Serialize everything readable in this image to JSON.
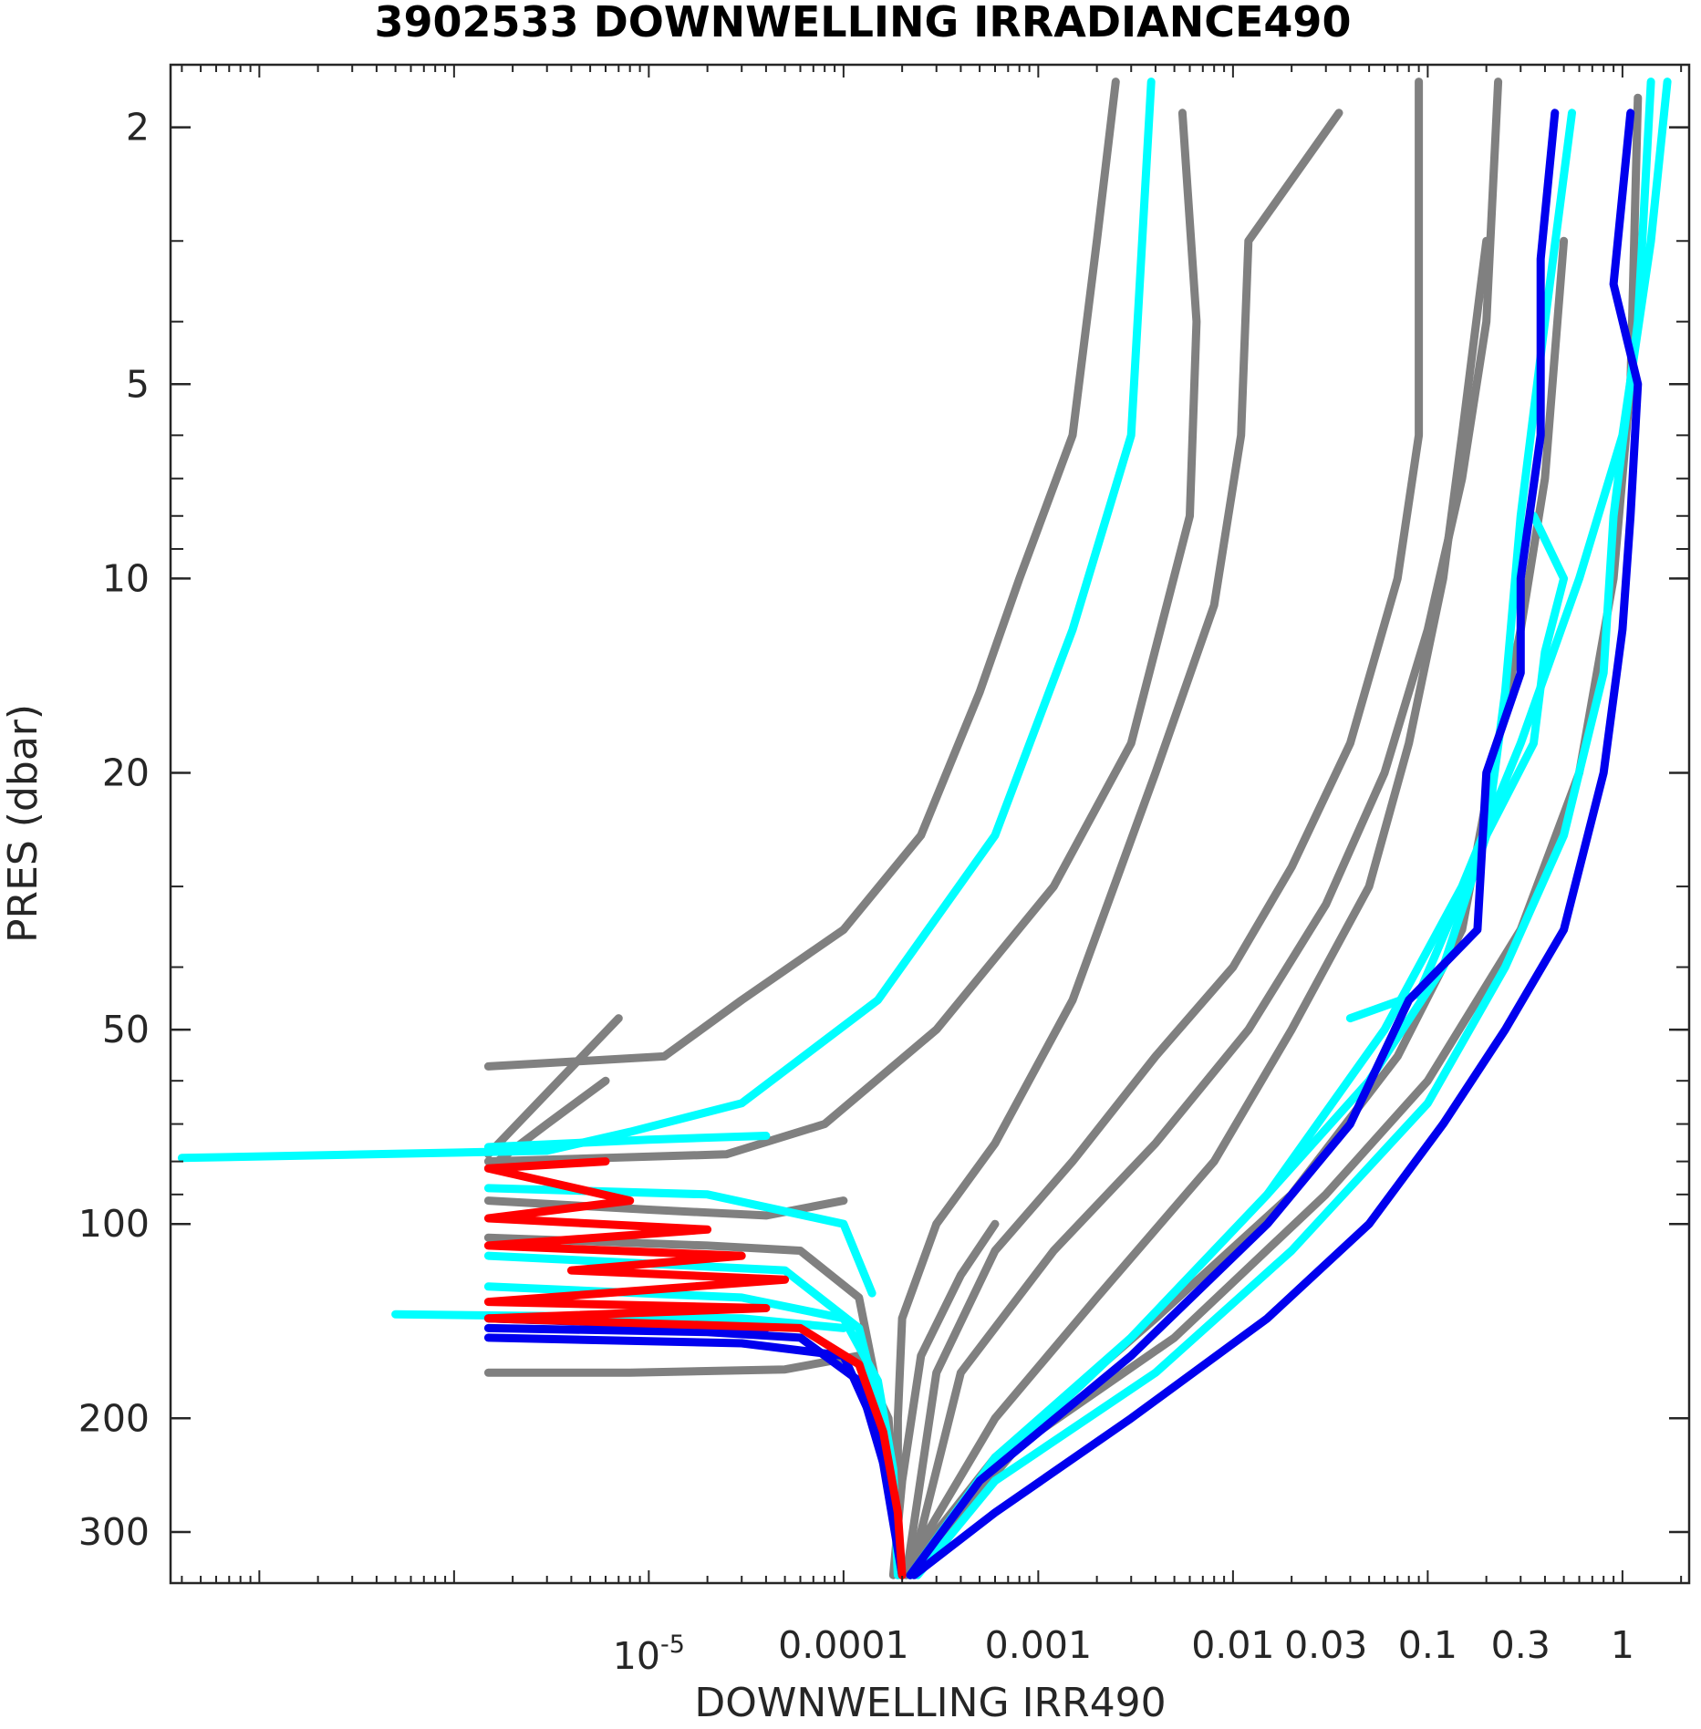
{
  "colors": {
    "gray": "#808080",
    "cyan": "#00ffff",
    "blue": "#0000ee",
    "red": "#ff0000",
    "axis": "#262626"
  },
  "chart_data": {
    "type": "line",
    "title": "3902533  DOWNWELLING IRRADIANCE490",
    "xlabel": "DOWNWELLING IRR490",
    "ylabel": "PRES (dbar)",
    "xscale": "log",
    "yscale": "log",
    "y_reversed": true,
    "grid": false,
    "xlim": [
      3.5e-08,
      2.2
    ],
    "ylim": [
      1.6,
      360
    ],
    "xticks": [
      {
        "v": 1e-05,
        "base": "10",
        "exp": "-5"
      },
      {
        "v": 0.0001,
        "t": "0.0001"
      },
      {
        "v": 0.001,
        "t": "0.001"
      },
      {
        "v": 0.01,
        "t": "0.01"
      },
      {
        "v": 0.03,
        "t": "0.03"
      },
      {
        "v": 0.1,
        "t": "0.1"
      },
      {
        "v": 0.3,
        "t": "0.3"
      },
      {
        "v": 1,
        "t": "1"
      }
    ],
    "yticks": [
      {
        "v": 2,
        "t": "2"
      },
      {
        "v": 5,
        "t": "5"
      },
      {
        "v": 10,
        "t": "10"
      },
      {
        "v": 20,
        "t": "20"
      },
      {
        "v": 50,
        "t": "50"
      },
      {
        "v": 100,
        "t": "100"
      },
      {
        "v": 200,
        "t": "200"
      },
      {
        "v": 300,
        "t": "300"
      }
    ],
    "series": [
      {
        "color": "gray",
        "points": [
          [
            0.0025,
            1.7
          ],
          [
            0.002,
            3
          ],
          [
            0.0015,
            6
          ],
          [
            0.0008,
            10
          ],
          [
            0.0005,
            15
          ],
          [
            0.00025,
            25
          ],
          [
            0.0001,
            35
          ],
          [
            3e-05,
            45
          ],
          [
            1.2e-05,
            55
          ],
          [
            1.5e-06,
            57
          ]
        ]
      },
      {
        "color": "gray",
        "points": [
          [
            0.0006,
            100
          ],
          [
            0.0004,
            120
          ],
          [
            0.00025,
            160
          ],
          [
            0.0002,
            250
          ],
          [
            0.00018,
            350
          ]
        ]
      },
      {
        "color": "gray",
        "points": [
          [
            0.0055,
            1.9
          ],
          [
            0.0065,
            4
          ],
          [
            0.006,
            8
          ],
          [
            0.003,
            18
          ],
          [
            0.0012,
            30
          ],
          [
            0.0003,
            50
          ],
          [
            8e-05,
            70
          ],
          [
            2.5e-05,
            78
          ],
          [
            1.5e-06,
            80
          ]
        ]
      },
      {
        "color": "gray",
        "points": [
          [
            0.035,
            1.9
          ],
          [
            0.012,
            3
          ],
          [
            0.011,
            6
          ],
          [
            0.008,
            11
          ],
          [
            0.004,
            20
          ],
          [
            0.0015,
            45
          ],
          [
            0.0006,
            75
          ],
          [
            0.0003,
            100
          ],
          [
            0.0002,
            140
          ],
          [
            0.00019,
            200
          ],
          [
            0.00019,
            350
          ]
        ]
      },
      {
        "color": "gray",
        "points": [
          [
            0.09,
            1.7
          ],
          [
            0.09,
            6
          ],
          [
            0.07,
            10
          ],
          [
            0.04,
            18
          ],
          [
            0.02,
            28
          ],
          [
            0.01,
            40
          ],
          [
            0.004,
            55
          ],
          [
            0.0015,
            80
          ],
          [
            0.0006,
            110
          ],
          [
            0.0003,
            170
          ],
          [
            0.00021,
            350
          ]
        ]
      },
      {
        "color": "gray",
        "points": [
          [
            0.23,
            1.7
          ],
          [
            0.2,
            4
          ],
          [
            0.15,
            7
          ],
          [
            0.1,
            12
          ],
          [
            0.06,
            20
          ],
          [
            0.03,
            32
          ],
          [
            0.012,
            50
          ],
          [
            0.004,
            75
          ],
          [
            0.0012,
            110
          ],
          [
            0.0004,
            170
          ],
          [
            0.00022,
            350
          ]
        ]
      },
      {
        "color": "gray",
        "points": [
          [
            0.2,
            3
          ],
          [
            0.15,
            6
          ],
          [
            0.12,
            10
          ],
          [
            0.08,
            18
          ],
          [
            0.05,
            30
          ],
          [
            0.02,
            50
          ],
          [
            0.008,
            80
          ],
          [
            0.002,
            130
          ],
          [
            0.0006,
            200
          ],
          [
            0.0002,
            350
          ]
        ]
      },
      {
        "color": "gray",
        "points": [
          [
            1.5e-06,
            170
          ],
          [
            8e-06,
            170
          ],
          [
            5e-05,
            168
          ],
          [
            0.00012,
            160
          ],
          [
            0.00017,
            200
          ],
          [
            0.00019,
            300
          ]
        ]
      },
      {
        "color": "gray",
        "points": [
          [
            1.5e-06,
            105
          ],
          [
            2e-05,
            108
          ],
          [
            6e-05,
            110
          ],
          [
            0.00012,
            130
          ],
          [
            0.00017,
            220
          ],
          [
            0.00019,
            300
          ]
        ]
      },
      {
        "color": "gray",
        "points": [
          [
            1.5e-06,
            82
          ],
          [
            3e-06,
            70
          ],
          [
            6e-06,
            60
          ]
        ]
      },
      {
        "color": "gray",
        "points": [
          [
            1.5e-06,
            92
          ],
          [
            1e-05,
            95
          ],
          [
            4e-05,
            97
          ],
          [
            0.0001,
            92
          ]
        ]
      },
      {
        "color": "gray",
        "points": [
          [
            1.5e-06,
            78
          ],
          [
            7e-06,
            48
          ]
        ]
      },
      {
        "color": "gray",
        "points": [
          [
            1.2,
            1.8
          ],
          [
            1.1,
            5
          ],
          [
            0.9,
            10
          ],
          [
            0.6,
            20
          ],
          [
            0.3,
            35
          ],
          [
            0.1,
            60
          ],
          [
            0.03,
            90
          ],
          [
            0.005,
            150
          ],
          [
            0.0008,
            220
          ],
          [
            0.00022,
            350
          ]
        ]
      },
      {
        "color": "gray",
        "points": [
          [
            0.5,
            3
          ],
          [
            0.4,
            7
          ],
          [
            0.3,
            12
          ],
          [
            0.2,
            22
          ],
          [
            0.15,
            35
          ],
          [
            0.07,
            55
          ],
          [
            0.02,
            90
          ],
          [
            0.004,
            140
          ],
          [
            0.0006,
            230
          ],
          [
            0.0002,
            350
          ]
        ]
      },
      {
        "color": "cyan",
        "points": [
          [
            0.0038,
            1.7
          ],
          [
            0.003,
            6
          ],
          [
            0.0015,
            12
          ],
          [
            0.0006,
            25
          ],
          [
            0.00015,
            45
          ],
          [
            3e-05,
            65
          ],
          [
            8e-06,
            72
          ],
          [
            3e-06,
            77
          ],
          [
            4e-08,
            79
          ]
        ]
      },
      {
        "color": "cyan",
        "points": [
          [
            1.5e-06,
            125
          ],
          [
            3e-05,
            130
          ],
          [
            0.0001,
            140
          ],
          [
            0.00015,
            175
          ],
          [
            0.00018,
            240
          ],
          [
            0.00019,
            350
          ]
        ]
      },
      {
        "color": "cyan",
        "points": [
          [
            1.5e-06,
            112
          ],
          [
            5e-05,
            118
          ],
          [
            0.00012,
            145
          ],
          [
            0.00017,
            220
          ],
          [
            0.0002,
            350
          ]
        ]
      },
      {
        "color": "cyan",
        "points": [
          [
            1.5e-06,
            88
          ],
          [
            2e-05,
            90
          ],
          [
            0.0001,
            100
          ],
          [
            0.00014,
            128
          ]
        ]
      },
      {
        "color": "cyan",
        "points": [
          [
            1.5e-06,
            76
          ],
          [
            1e-05,
            74
          ],
          [
            4e-05,
            73
          ]
        ]
      },
      {
        "color": "cyan",
        "points": [
          [
            5e-07,
            138
          ],
          [
            3e-05,
            140
          ],
          [
            0.0001,
            145
          ]
        ]
      },
      {
        "color": "cyan",
        "points": [
          [
            0.55,
            1.9
          ],
          [
            0.4,
            4
          ],
          [
            0.3,
            8
          ],
          [
            0.25,
            15
          ],
          [
            0.2,
            25
          ],
          [
            0.12,
            40
          ],
          [
            0.05,
            60
          ],
          [
            0.015,
            90
          ],
          [
            0.003,
            150
          ],
          [
            0.0006,
            230
          ],
          [
            0.00022,
            350
          ]
        ]
      },
      {
        "color": "cyan",
        "points": [
          [
            1.4,
            1.7
          ],
          [
            1.2,
            4
          ],
          [
            0.9,
            8
          ],
          [
            0.8,
            14
          ],
          [
            0.5,
            25
          ],
          [
            0.25,
            40
          ],
          [
            0.1,
            65
          ],
          [
            0.02,
            110
          ],
          [
            0.004,
            170
          ],
          [
            0.0006,
            250
          ],
          [
            0.00024,
            350
          ]
        ]
      },
      {
        "color": "cyan",
        "points": [
          [
            1.7,
            1.7
          ],
          [
            1.4,
            3
          ],
          [
            1,
            6
          ],
          [
            0.6,
            10
          ],
          [
            0.3,
            18
          ],
          [
            0.15,
            30
          ],
          [
            0.06,
            50
          ],
          [
            0.015,
            90
          ],
          [
            0.003,
            150
          ],
          [
            0.0005,
            250
          ]
        ]
      },
      {
        "color": "cyan",
        "points": [
          [
            0.35,
            8
          ],
          [
            0.5,
            10
          ],
          [
            0.4,
            13
          ],
          [
            0.35,
            18
          ],
          [
            0.2,
            25
          ],
          [
            0.09,
            44
          ],
          [
            0.04,
            48
          ]
        ]
      },
      {
        "color": "blue",
        "points": [
          [
            0.45,
            1.9
          ],
          [
            0.38,
            3.2
          ],
          [
            0.38,
            6
          ],
          [
            0.3,
            10
          ],
          [
            0.3,
            14
          ],
          [
            0.2,
            20
          ],
          [
            0.18,
            35
          ],
          [
            0.08,
            45
          ],
          [
            0.04,
            70
          ],
          [
            0.015,
            100
          ],
          [
            0.003,
            160
          ],
          [
            0.0005,
            250
          ],
          [
            0.00022,
            350
          ]
        ]
      },
      {
        "color": "blue",
        "points": [
          [
            1.1,
            1.9
          ],
          [
            0.9,
            3.5
          ],
          [
            1.2,
            5
          ],
          [
            1.1,
            8
          ],
          [
            1,
            12
          ],
          [
            0.8,
            20
          ],
          [
            0.5,
            35
          ],
          [
            0.25,
            50
          ],
          [
            0.12,
            70
          ],
          [
            0.05,
            100
          ],
          [
            0.015,
            140
          ],
          [
            0.003,
            200
          ],
          [
            0.0006,
            280
          ],
          [
            0.00023,
            350
          ]
        ]
      },
      {
        "color": "blue",
        "points": [
          [
            1.5e-06,
            145
          ],
          [
            2e-05,
            147
          ],
          [
            6e-05,
            150
          ],
          [
            0.00012,
            175
          ],
          [
            0.00017,
            250
          ],
          [
            0.0002,
            350
          ]
        ]
      },
      {
        "color": "blue",
        "points": [
          [
            1.5e-06,
            150
          ],
          [
            3e-05,
            153
          ],
          [
            0.0001,
            160
          ],
          [
            0.00015,
            210
          ],
          [
            0.0002,
            350
          ]
        ]
      },
      {
        "color": "blue",
        "points": [
          [
            1.5e-06,
            140
          ],
          [
            4e-05,
            145
          ]
        ]
      },
      {
        "color": "red",
        "points": [
          [
            6e-06,
            80
          ],
          [
            1.5e-06,
            82
          ],
          [
            8e-06,
            92
          ],
          [
            1.5e-06,
            98
          ],
          [
            2e-05,
            102
          ],
          [
            1.5e-06,
            108
          ],
          [
            3e-05,
            112
          ],
          [
            4e-06,
            118
          ],
          [
            5e-05,
            122
          ],
          [
            1.5e-06,
            132
          ],
          [
            4e-05,
            135
          ],
          [
            1.5e-06,
            140
          ],
          [
            6e-05,
            145
          ],
          [
            0.00012,
            165
          ],
          [
            0.00016,
            210
          ],
          [
            0.00019,
            280
          ],
          [
            0.0002,
            350
          ]
        ]
      }
    ]
  }
}
